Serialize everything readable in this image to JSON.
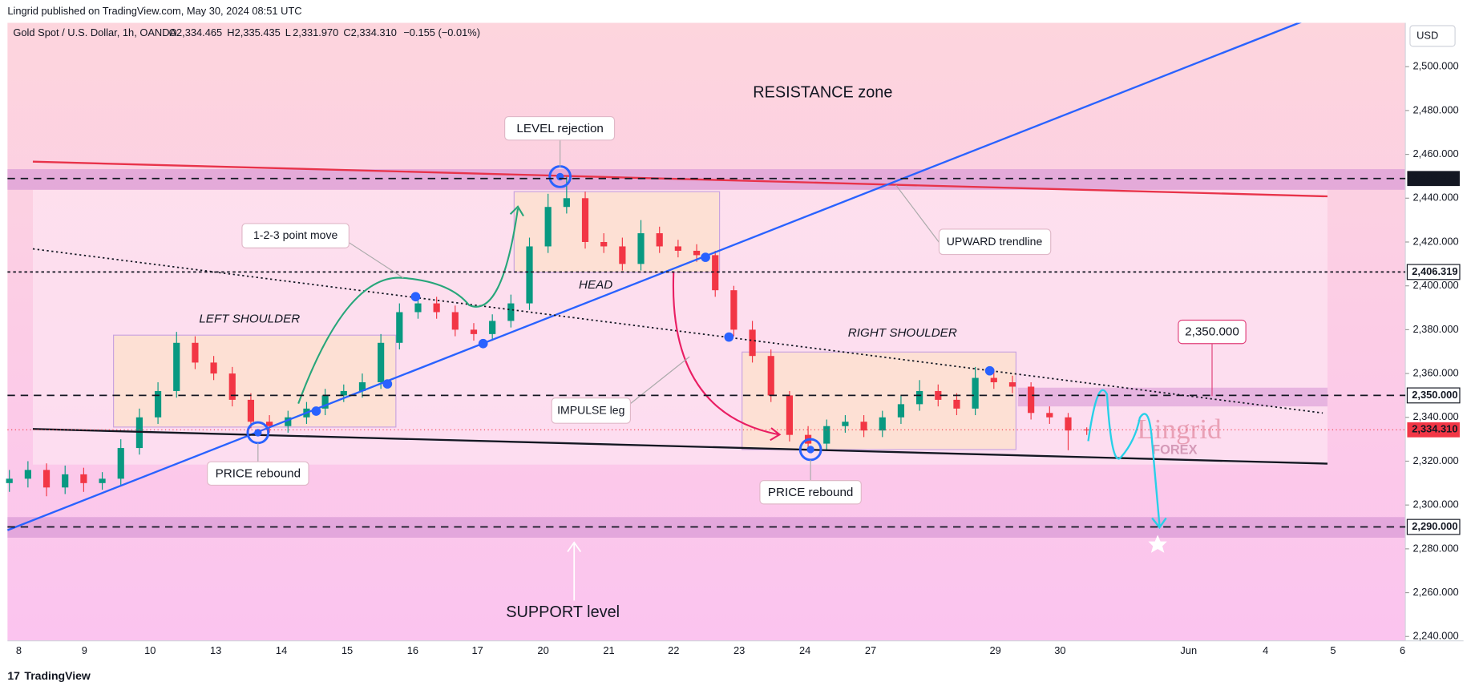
{
  "header": {
    "published": "Lingrid published on TradingView.com, May 30, 2024 08:51 UTC",
    "symbol": "Gold Spot / U.S. Dollar, 1h, OANDA",
    "ohlc": [
      {
        "key": "O",
        "value": "2,334.465"
      },
      {
        "key": "H",
        "value": "2,335.435"
      },
      {
        "key": "L",
        "value": "2,331.970"
      },
      {
        "key": "C",
        "value": "2,334.310"
      }
    ],
    "change": "−0.155 (−0.01%)"
  },
  "chart_data": {
    "type": "candlestick",
    "currency": "USD",
    "up_color": "#089981",
    "down_color": "#f23645",
    "candles": {
      "open": [
        2310,
        2312,
        2316,
        2308,
        2314,
        2310,
        2312,
        2326,
        2340,
        2352,
        2374,
        2365,
        2360,
        2348,
        2338,
        2336,
        2340,
        2344,
        2350,
        2352,
        2356,
        2374,
        2388,
        2392,
        2388,
        2380,
        2378,
        2384,
        2392,
        2418,
        2436,
        2440,
        2420,
        2418,
        2410,
        2424,
        2418,
        2416,
        2414,
        2398,
        2380,
        2368,
        2350,
        2332,
        2328,
        2336,
        2338,
        2334,
        2340,
        2346,
        2352,
        2348,
        2344,
        2358,
        2356,
        2354,
        2342,
        2340,
        2334.465
      ],
      "high": [
        2316,
        2320,
        2319,
        2318,
        2317,
        2315,
        2330,
        2344,
        2356,
        2379,
        2377,
        2368,
        2363,
        2351,
        2341,
        2343,
        2347,
        2353,
        2355,
        2360,
        2378,
        2392,
        2396,
        2395,
        2391,
        2383,
        2387,
        2396,
        2422,
        2442,
        2450,
        2443,
        2424,
        2422,
        2430,
        2427,
        2421,
        2419,
        2416,
        2400,
        2384,
        2371,
        2352,
        2336,
        2339,
        2341,
        2341,
        2343,
        2350,
        2357,
        2355,
        2351,
        2363,
        2362,
        2359,
        2356,
        2345,
        2342,
        2335.435
      ],
      "low": [
        2306,
        2308,
        2304,
        2305,
        2306,
        2307,
        2309,
        2323,
        2337,
        2349,
        2362,
        2357,
        2345,
        2335,
        2333,
        2333,
        2337,
        2341,
        2347,
        2349,
        2353,
        2371,
        2385,
        2385,
        2377,
        2375,
        2375,
        2381,
        2389,
        2415,
        2433,
        2417,
        2415,
        2407,
        2407,
        2415,
        2413,
        2411,
        2395,
        2377,
        2365,
        2347,
        2329,
        2325,
        2325,
        2333,
        2331,
        2331,
        2337,
        2343,
        2345,
        2341,
        2341,
        2353,
        2351,
        2339,
        2337,
        2325,
        2331.97
      ],
      "close": [
        2312,
        2316,
        2308,
        2314,
        2310,
        2312,
        2326,
        2340,
        2352,
        2374,
        2365,
        2360,
        2348,
        2338,
        2336,
        2340,
        2344,
        2350,
        2352,
        2356,
        2374,
        2388,
        2392,
        2388,
        2380,
        2378,
        2384,
        2392,
        2418,
        2436,
        2440,
        2420,
        2418,
        2410,
        2424,
        2418,
        2416,
        2414,
        2398,
        2380,
        2368,
        2350,
        2332,
        2328,
        2336,
        2338,
        2334,
        2340,
        2346,
        2352,
        2348,
        2344,
        2358,
        2356,
        2354,
        2342,
        2340,
        2334,
        2334.31
      ]
    },
    "ylim": [
      2238,
      2520
    ],
    "yticks": [
      {
        "value": 2240,
        "label": "2,240.000"
      },
      {
        "value": 2260,
        "label": "2,260.000"
      },
      {
        "value": 2280,
        "label": "2,280.000"
      },
      {
        "value": 2300,
        "label": "2,300.000"
      },
      {
        "value": 2320,
        "label": "2,320.000"
      },
      {
        "value": 2340,
        "label": "2,340.000"
      },
      {
        "value": 2360,
        "label": "2,360.000"
      },
      {
        "value": 2380,
        "label": "2,380.000"
      },
      {
        "value": 2400,
        "label": "2,400.000"
      },
      {
        "value": 2420,
        "label": "2,420.000"
      },
      {
        "value": 2440,
        "label": "2,440.000"
      },
      {
        "value": 2460,
        "label": "2,460.000"
      },
      {
        "value": 2480,
        "label": "2,480.000"
      },
      {
        "value": 2500,
        "label": "2,500.000"
      }
    ],
    "levels": [
      {
        "value": 2448.975,
        "label": "2,448.975",
        "color": "#131722"
      },
      {
        "value": 2406.319,
        "label": "2,406.319",
        "color": "#ffffff"
      },
      {
        "value": 2350,
        "label": "2,350.000",
        "color": "#ffffff"
      },
      {
        "value": 2334.31,
        "label": "2,334.310",
        "color": "#f23645"
      },
      {
        "value": 2290,
        "label": "2,290.000",
        "color": "#ffffff"
      }
    ],
    "x_labels": [
      "8",
      "9",
      "10",
      "13",
      "14",
      "15",
      "16",
      "17",
      "20",
      "21",
      "22",
      "23",
      "24",
      "27",
      "29",
      "30",
      "Jun",
      "4",
      "5",
      "6"
    ]
  },
  "annotations": {
    "resistance": "RESISTANCE zone",
    "level_rejection": "LEVEL rejection",
    "point_move": "1-2-3 point move",
    "head": "HEAD",
    "left_shoulder": "LEFT SHOULDER",
    "right_shoulder": "RIGHT SHOULDER",
    "upward_trendline": "UPWARD trendline",
    "target": "2,350.000",
    "impulse": "IMPULSE leg",
    "rebound_left": "PRICE rebound",
    "rebound_right": "PRICE rebound",
    "support": "SUPPORT level",
    "watermark": "Lingrid",
    "watermark_sub": "FOREX"
  },
  "footer": "TradingView"
}
